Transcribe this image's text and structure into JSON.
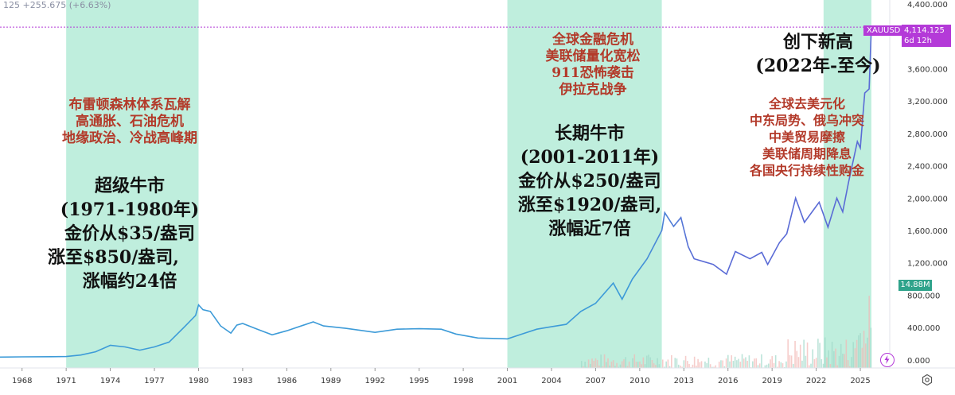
{
  "header": {
    "text": "125 +255.675 (+6.63%)"
  },
  "symbol": {
    "name": "XAUUSD",
    "price": "4,114.125",
    "countdown": "6d 12h"
  },
  "volume_badge": "14.88M",
  "colors": {
    "line": "#3d9bd8",
    "line_late": "#5a6bd6",
    "shade": "#bfeedd",
    "price_badge": "#b43ad8",
    "volume": "#2fa38b",
    "red_text": "#b33a2a"
  },
  "icons": {
    "lightning": "lightning-icon",
    "settings": "settings-icon"
  },
  "annotations": {
    "era1_red": [
      "布雷顿森林体系瓦解",
      "高通胀、石油危机",
      "地缘政治、冷战高峰期"
    ],
    "era1_main": [
      "超级牛市",
      "(1971-1980年)",
      "金价从$35/盎司",
      "涨至$850/盎司,",
      "涨幅约24倍"
    ],
    "era2_red": [
      "全球金融危机",
      "美联储量化宽松",
      "911恐怖袭击",
      "伊拉克战争"
    ],
    "era2_main": [
      "长期牛市",
      "(2001-2011年)",
      "金价从$250/盎司",
      "涨至$1920/盎司,",
      "涨幅近7倍"
    ],
    "era3_title": [
      "创下新高",
      "(2022年-至今)"
    ],
    "era3_red": [
      "全球去美元化",
      "中东局势、俄乌冲突",
      "中美贸易摩擦",
      "美联储周期降息",
      "各国央行持续性购金"
    ]
  },
  "chart_data": {
    "type": "line",
    "title": "",
    "xlabel": "",
    "ylabel": "",
    "ylim": [
      -100,
      4450
    ],
    "xlim": [
      1966.5,
      2027.0
    ],
    "grid": false,
    "y_ticks": [
      "4,400.000",
      "4,000.000",
      "3,600.000",
      "3,200.000",
      "2,800.000",
      "2,400.000",
      "2,000.000",
      "1,600.000",
      "1,200.000",
      "800.000",
      "400.000",
      "0.000"
    ],
    "y_tick_values": [
      4400,
      4000,
      3600,
      3200,
      2800,
      2400,
      2000,
      1600,
      1200,
      800,
      400,
      0
    ],
    "x_ticks": [
      "1968",
      "1971",
      "1974",
      "1977",
      "1980",
      "1983",
      "1986",
      "1989",
      "1992",
      "1995",
      "1998",
      "2001",
      "2004",
      "2007",
      "2010",
      "2013",
      "2016",
      "2019",
      "2022",
      "2025"
    ],
    "x_tick_values": [
      1968,
      1971,
      1974,
      1977,
      1980,
      1983,
      1986,
      1989,
      1992,
      1995,
      1998,
      2001,
      2004,
      2007,
      2010,
      2013,
      2016,
      2019,
      2022,
      2025
    ],
    "shaded_periods": [
      [
        1971.0,
        1980.0
      ],
      [
        2001.0,
        2011.5
      ],
      [
        2022.5,
        2025.75
      ]
    ],
    "current_price": 4114.125,
    "series": [
      {
        "values": [
          [
            1966.5,
            35
          ],
          [
            1968,
            38
          ],
          [
            1970,
            40
          ],
          [
            1971,
            42
          ],
          [
            1972,
            60
          ],
          [
            1973,
            100
          ],
          [
            1974,
            180
          ],
          [
            1975,
            160
          ],
          [
            1976,
            120
          ],
          [
            1977,
            160
          ],
          [
            1978,
            220
          ],
          [
            1979,
            400
          ],
          [
            1979.8,
            550
          ],
          [
            1980.0,
            680
          ],
          [
            1980.3,
            620
          ],
          [
            1980.8,
            600
          ],
          [
            1981.5,
            420
          ],
          [
            1982.2,
            330
          ],
          [
            1982.6,
            430
          ],
          [
            1983.0,
            450
          ],
          [
            1984.0,
            380
          ],
          [
            1985.0,
            310
          ],
          [
            1986.0,
            360
          ],
          [
            1987.8,
            470
          ],
          [
            1988.5,
            420
          ],
          [
            1990,
            390
          ],
          [
            1992,
            340
          ],
          [
            1993.5,
            380
          ],
          [
            1995,
            385
          ],
          [
            1996.5,
            380
          ],
          [
            1997.5,
            320
          ],
          [
            1999,
            270
          ],
          [
            2001.0,
            260
          ],
          [
            2002,
            320
          ],
          [
            2003,
            380
          ],
          [
            2004,
            410
          ],
          [
            2005,
            440
          ],
          [
            2006,
            600
          ],
          [
            2007,
            700
          ],
          [
            2008.2,
            950
          ],
          [
            2008.8,
            750
          ],
          [
            2009.5,
            1000
          ],
          [
            2010.5,
            1250
          ],
          [
            2011.5,
            1600
          ],
          [
            2011.7,
            1820
          ],
          [
            2012.3,
            1650
          ],
          [
            2012.8,
            1760
          ],
          [
            2013.3,
            1400
          ],
          [
            2013.7,
            1250
          ],
          [
            2015,
            1180
          ],
          [
            2015.9,
            1060
          ],
          [
            2016.5,
            1340
          ],
          [
            2017.5,
            1250
          ],
          [
            2018.3,
            1330
          ],
          [
            2018.7,
            1180
          ],
          [
            2019.5,
            1450
          ],
          [
            2020.0,
            1560
          ],
          [
            2020.6,
            2000
          ],
          [
            2021.2,
            1700
          ],
          [
            2022.2,
            1950
          ],
          [
            2022.8,
            1640
          ],
          [
            2023.4,
            2000
          ],
          [
            2023.8,
            1830
          ],
          [
            2024.2,
            2200
          ],
          [
            2024.8,
            2700
          ],
          [
            2025.0,
            2620
          ],
          [
            2025.3,
            3300
          ],
          [
            2025.6,
            3350
          ],
          [
            2025.75,
            4114
          ]
        ]
      }
    ]
  }
}
